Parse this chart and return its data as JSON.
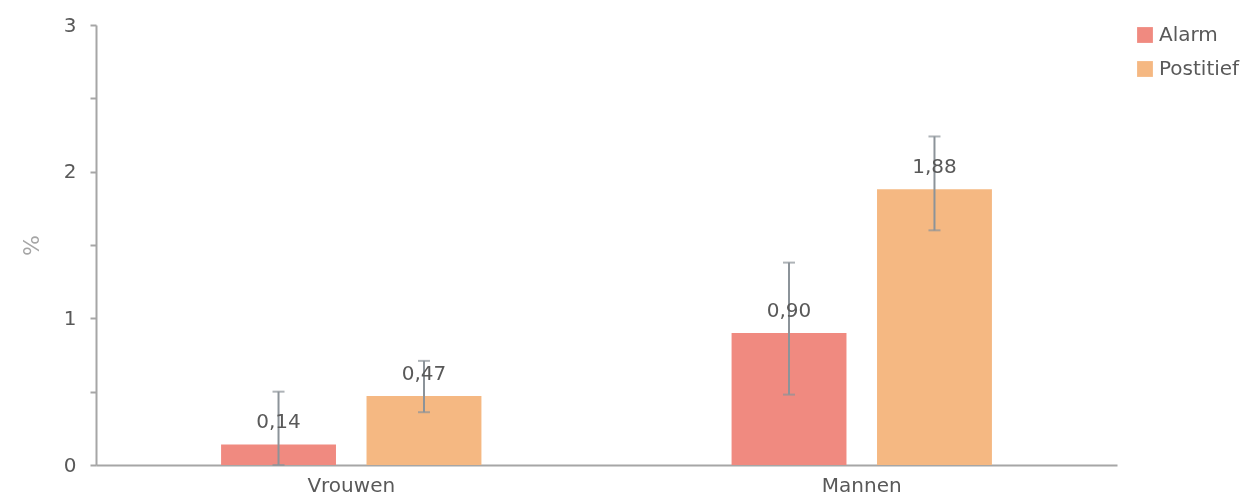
{
  "chart_data": {
    "type": "bar",
    "ylabel": "%",
    "categories": [
      "Vrouwen",
      "Mannen"
    ],
    "series": [
      {
        "name": "Alarm",
        "color": "#f08a80",
        "values": [
          0.14,
          0.9
        ],
        "errors": [
          [
            0,
            0.5
          ],
          [
            0.48,
            1.38
          ]
        ],
        "value_labels": [
          "0,14",
          "0,90"
        ]
      },
      {
        "name": "Postitief",
        "color": "#f5b882",
        "values": [
          0.47,
          1.88
        ],
        "errors": [
          [
            0.36,
            0.71
          ],
          [
            1.6,
            2.24
          ]
        ],
        "value_labels": [
          "0,47",
          "1,88"
        ]
      }
    ],
    "ylim": [
      0,
      3
    ],
    "yticks": [
      0,
      {
        "value": 0.5,
        "label": null
      },
      1,
      {
        "value": 1.5,
        "label": null
      },
      2,
      {
        "value": 2.5,
        "label": null
      },
      3
    ],
    "grid": false,
    "legend": "right"
  }
}
